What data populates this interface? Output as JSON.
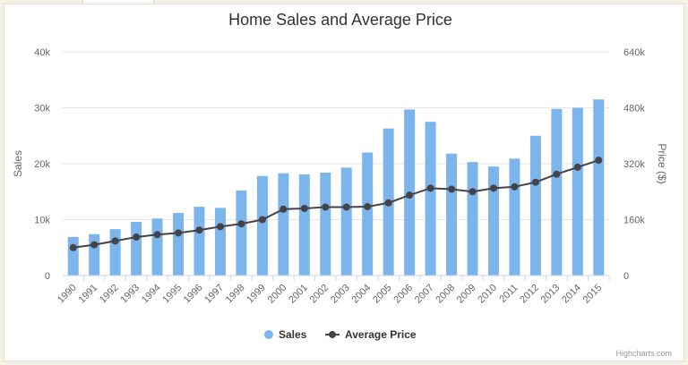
{
  "chart_data": {
    "type": "bar",
    "title": "Home Sales and Average Price",
    "categories": [
      "1990",
      "1991",
      "1992",
      "1993",
      "1994",
      "1995",
      "1996",
      "1997",
      "1998",
      "1999",
      "2000",
      "2001",
      "2002",
      "2003",
      "2004",
      "2005",
      "2006",
      "2007",
      "2008",
      "2009",
      "2010",
      "2011",
      "2012",
      "2013",
      "2014",
      "2015"
    ],
    "series": [
      {
        "name": "Sales",
        "type": "bar",
        "axis": "left",
        "color": "#7cb5ec",
        "values": [
          6900,
          7400,
          8300,
          9600,
          10200,
          11200,
          12300,
          12100,
          15200,
          17800,
          18300,
          18100,
          18400,
          19300,
          22000,
          26300,
          29700,
          27500,
          21800,
          20300,
          19500,
          20900,
          25000,
          29800,
          30000,
          31500
        ]
      },
      {
        "name": "Average Price",
        "type": "line",
        "axis": "right",
        "color": "#434348",
        "values": [
          80000,
          88000,
          99000,
          110000,
          117000,
          122000,
          130000,
          140000,
          148000,
          160000,
          190000,
          192000,
          196000,
          196000,
          197000,
          208000,
          230000,
          250000,
          247000,
          240000,
          250000,
          254000,
          267000,
          290000,
          310000,
          330000
        ]
      }
    ],
    "y_left": {
      "label": "Sales",
      "ticks": [
        "0",
        "10k",
        "20k",
        "30k",
        "40k"
      ],
      "min": 0,
      "max": 40000
    },
    "y_right": {
      "label": "Price ($)",
      "ticks": [
        "0",
        "160k",
        "320k",
        "480k",
        "640k"
      ],
      "min": 0,
      "max": 640000
    },
    "legend": {
      "position": "bottom-center",
      "items": [
        "Sales",
        "Average Price"
      ]
    },
    "grid": true,
    "credits": "Highcharts.com"
  }
}
